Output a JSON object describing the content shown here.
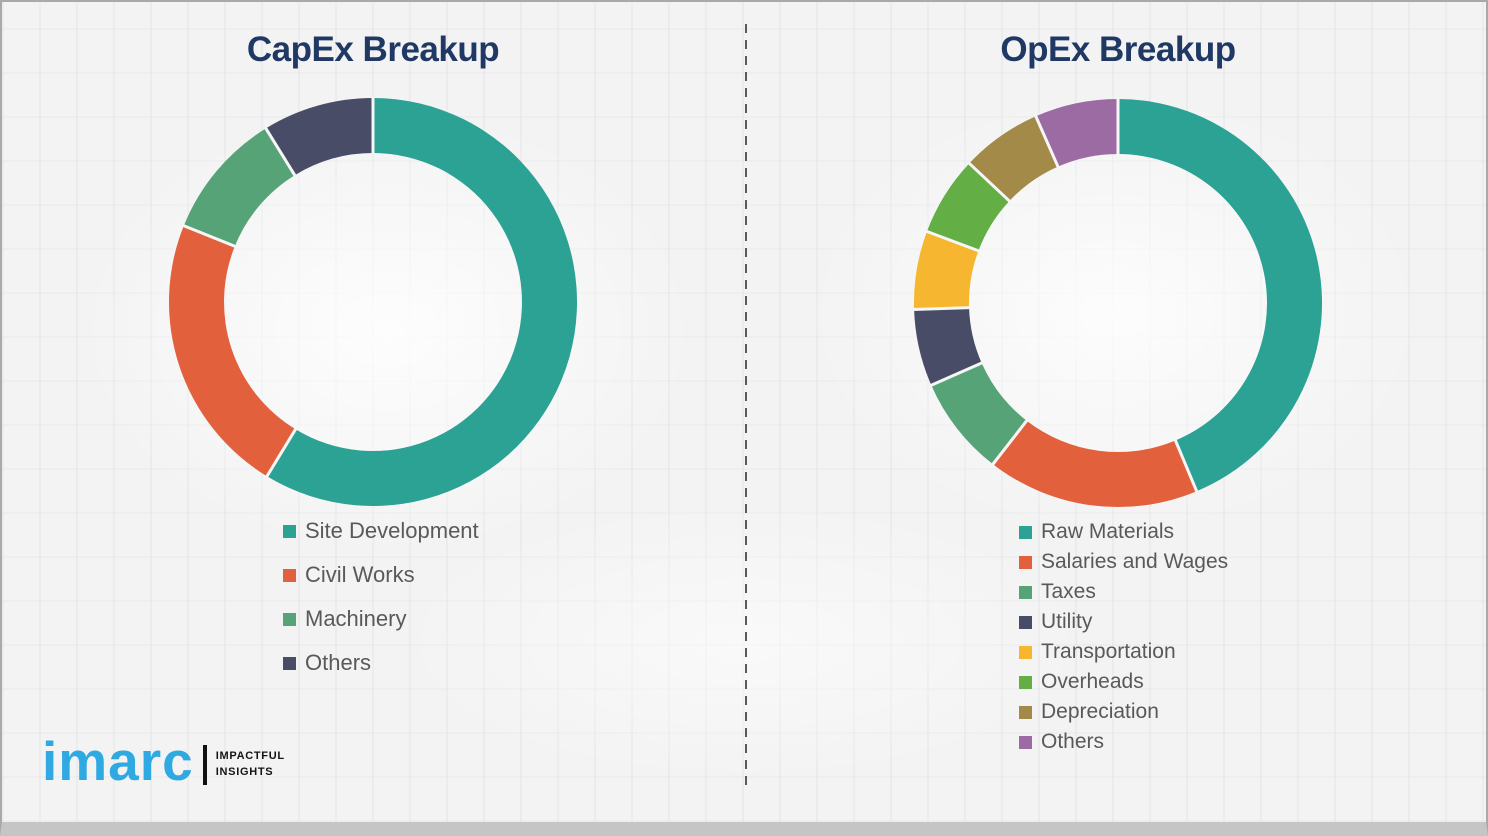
{
  "page": {
    "background_color": "#f3f3f4",
    "divider_color": "#595959",
    "title_color": "#1f3864",
    "legend_text_color": "#595959"
  },
  "chart_data": [
    {
      "type": "pie",
      "subtype": "donut",
      "title": "CapEx Breakup",
      "labels": [
        "Site Development",
        "Civil Works",
        "Machinery",
        "Others"
      ],
      "values": [
        58.7,
        22.4,
        10.1,
        8.8
      ],
      "colors": [
        "#2ba294",
        "#e2603c",
        "#57a378",
        "#484c66"
      ],
      "start_angle_deg": 0,
      "direction": "clockwise",
      "inner_radius_ratio": 0.73,
      "legend_position": "below-left",
      "data_labels": "none"
    },
    {
      "type": "pie",
      "subtype": "donut",
      "title": "OpEx Breakup",
      "labels": [
        "Raw Materials",
        "Salaries and Wages",
        "Taxes",
        "Utility",
        "Transportation",
        "Overheads",
        "Depreciation",
        "Others"
      ],
      "values": [
        43.7,
        16.8,
        7.9,
        6.1,
        6.2,
        6.3,
        6.4,
        6.6
      ],
      "colors": [
        "#2ba294",
        "#e2603c",
        "#57a378",
        "#484c66",
        "#f6b62f",
        "#63ae45",
        "#a38a48",
        "#9c6ba4"
      ],
      "start_angle_deg": 0,
      "direction": "clockwise",
      "inner_radius_ratio": 0.73,
      "legend_position": "below-left",
      "data_labels": "none"
    }
  ],
  "logo": {
    "brand": "imarc",
    "brand_color": "#2fa9e1",
    "tagline_line1": "IMPACTFUL",
    "tagline_line2": "INSIGHTS"
  }
}
